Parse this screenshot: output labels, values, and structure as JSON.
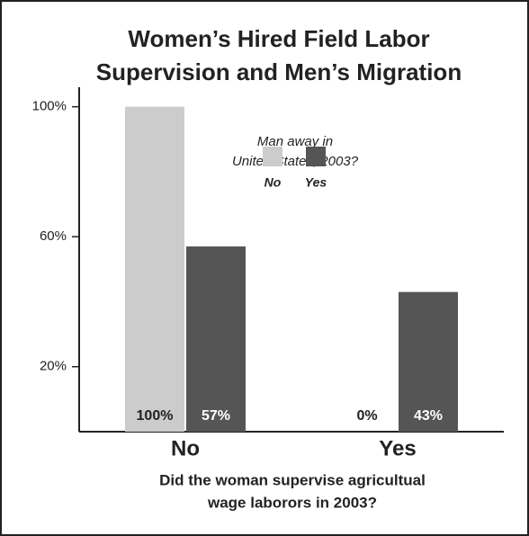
{
  "chart_data": {
    "type": "bar",
    "title_lines": [
      "Women’s Hired Field Labor",
      "Supervision and Men’s Migration"
    ],
    "categories": [
      "No",
      "Yes"
    ],
    "series": [
      {
        "name": "No",
        "color": "#cccccc",
        "values": [
          100,
          0
        ],
        "value_labels": [
          "100%",
          "0%"
        ]
      },
      {
        "name": "Yes",
        "color": "#555555",
        "values": [
          57,
          43
        ],
        "value_labels": [
          "57%",
          "43%"
        ]
      }
    ],
    "legend_title_lines": [
      "Man away in",
      "United States, 2003?"
    ],
    "xlabel_lines": [
      "Did the woman supervise agricultual",
      "wage laborors in 2003?"
    ],
    "ylim": [
      0,
      106
    ],
    "yticks": [
      {
        "value": 20,
        "label": "20%"
      },
      {
        "value": 60,
        "label": "60%"
      },
      {
        "value": 100,
        "label": "100%"
      }
    ],
    "grid": false
  }
}
